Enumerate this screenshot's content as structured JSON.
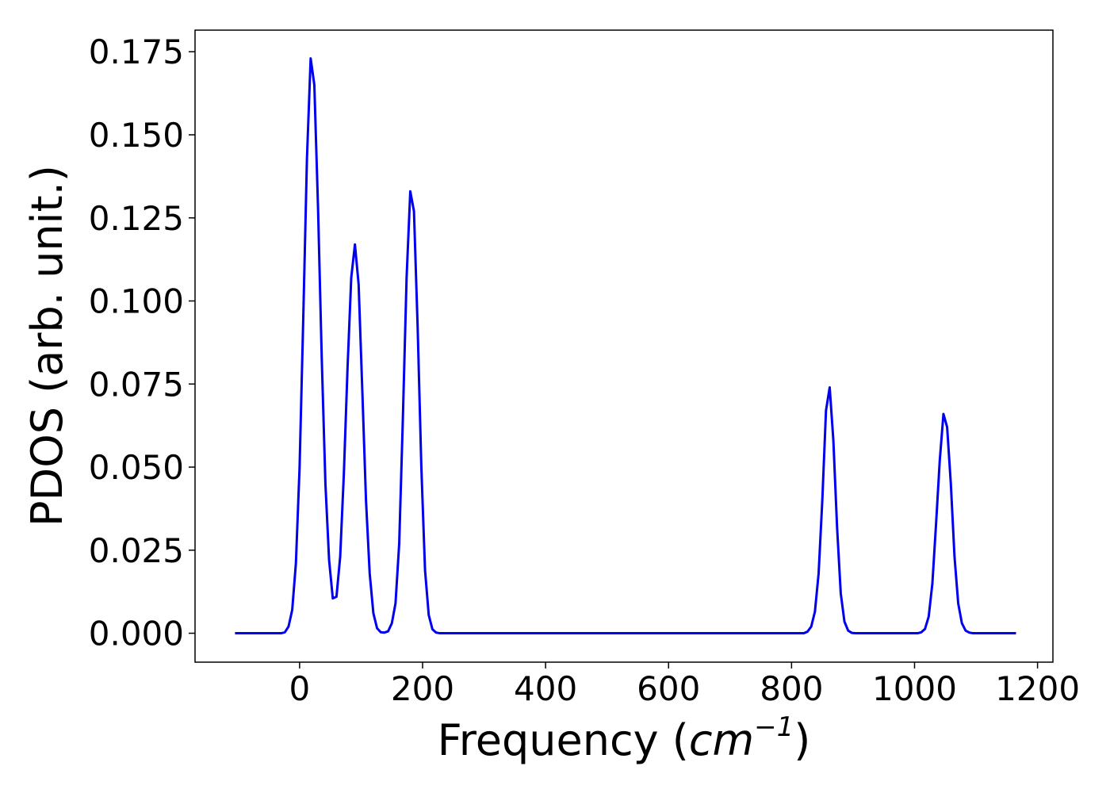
{
  "chart_data": {
    "type": "line",
    "xlabel": "Frequency (",
    "xlabel_unit_base": "cm",
    "xlabel_unit_exp": "−1",
    "xlabel_close": ")",
    "ylabel": "PDOS (arb. unit.)",
    "xlim": [
      -170,
      1225
    ],
    "ylim": [
      -0.0087,
      0.1815
    ],
    "xticks": [
      0,
      200,
      400,
      600,
      800,
      1000,
      1200
    ],
    "xtick_labels": [
      "0",
      "200",
      "400",
      "600",
      "800",
      "1000",
      "1200"
    ],
    "yticks": [
      0.0,
      0.025,
      0.05,
      0.075,
      0.1,
      0.125,
      0.15,
      0.175
    ],
    "ytick_labels": [
      "0.000",
      "0.025",
      "0.050",
      "0.075",
      "0.100",
      "0.125",
      "0.150",
      "0.175"
    ],
    "grid": false,
    "series": [
      {
        "color": "#0000ee",
        "x": [
          -105,
          -30,
          -24,
          -18,
          -12,
          -6,
          0,
          6,
          12,
          18,
          24,
          30,
          36,
          42,
          48,
          54,
          60,
          66,
          72,
          78,
          84,
          90,
          96,
          102,
          108,
          114,
          120,
          126,
          132,
          138,
          144,
          150,
          156,
          162,
          168,
          174,
          180,
          186,
          192,
          198,
          204,
          210,
          216,
          222,
          228,
          234,
          240,
          246,
          252,
          258,
          264,
          820,
          826,
          832,
          838,
          844,
          850,
          856,
          862,
          868,
          874,
          880,
          886,
          892,
          898,
          904,
          910,
          1005,
          1011,
          1017,
          1023,
          1029,
          1035,
          1041,
          1047,
          1053,
          1059,
          1065,
          1071,
          1077,
          1083,
          1089,
          1095,
          1101,
          1165
        ],
        "y": [
          0.0,
          0.0,
          0.0003,
          0.002,
          0.007,
          0.021,
          0.05,
          0.095,
          0.143,
          0.173,
          0.165,
          0.128,
          0.083,
          0.045,
          0.022,
          0.0105,
          0.011,
          0.023,
          0.048,
          0.08,
          0.107,
          0.117,
          0.105,
          0.073,
          0.04,
          0.018,
          0.006,
          0.0015,
          0.0003,
          0.0002,
          0.0006,
          0.003,
          0.009,
          0.027,
          0.065,
          0.107,
          0.133,
          0.127,
          0.092,
          0.05,
          0.019,
          0.0055,
          0.0012,
          0.0002,
          0.0,
          0.0,
          0.0,
          0.0,
          0.0,
          0.0,
          0.0,
          0.0,
          0.0005,
          0.002,
          0.0065,
          0.018,
          0.04,
          0.067,
          0.074,
          0.058,
          0.032,
          0.012,
          0.0035,
          0.0008,
          0.0001,
          0.0,
          0.0,
          0.0,
          0.0003,
          0.0013,
          0.005,
          0.015,
          0.033,
          0.052,
          0.066,
          0.062,
          0.045,
          0.023,
          0.009,
          0.003,
          0.0008,
          0.0002,
          0.0,
          0.0,
          0.0
        ]
      }
    ]
  }
}
